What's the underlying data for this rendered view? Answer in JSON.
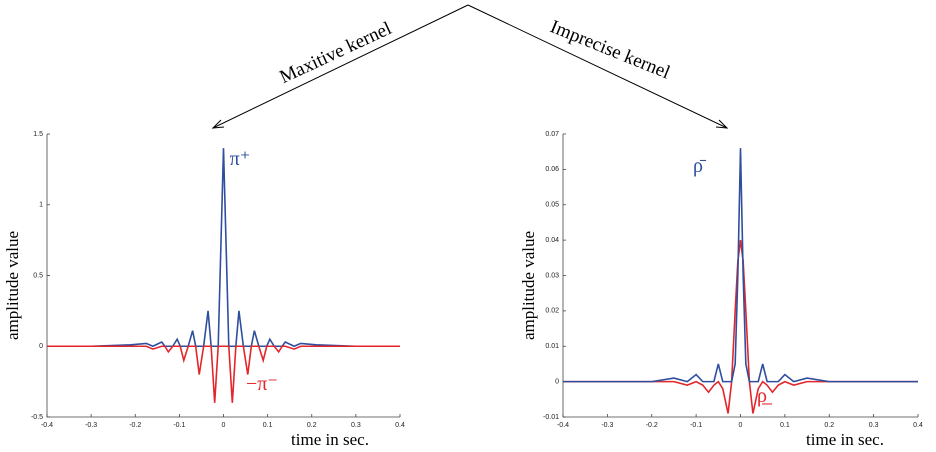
{
  "annotations": [
    "Maxitive kernel",
    "Imprecise kernel"
  ],
  "chart_data": [
    {
      "type": "line",
      "ylabel": "amplitude value",
      "xlabel": "time in sec.",
      "xlim": [
        -0.4,
        0.4
      ],
      "xticks": [
        -0.4,
        -0.3,
        -0.2,
        -0.1,
        0,
        0.1,
        0.2,
        0.3,
        0.4
      ],
      "ylim": [
        -0.5,
        1.5
      ],
      "yticks": [
        -0.5,
        0,
        0.5,
        1,
        1.5
      ],
      "x": [
        -0.4,
        -0.3,
        -0.21,
        -0.175,
        -0.16,
        -0.14,
        -0.133,
        -0.125,
        -0.115,
        -0.105,
        -0.098,
        -0.09,
        -0.08,
        -0.07,
        -0.063,
        -0.055,
        -0.045,
        -0.035,
        -0.028,
        -0.02,
        -0.012,
        0,
        0.012,
        0.02,
        0.028,
        0.035,
        0.045,
        0.055,
        0.063,
        0.07,
        0.08,
        0.09,
        0.098,
        0.105,
        0.115,
        0.125,
        0.133,
        0.14,
        0.16,
        0.175,
        0.21,
        0.3,
        0.4
      ],
      "series": [
        {
          "name": "π⁺",
          "color": "#2f4f9e",
          "values": [
            0,
            0,
            0.01,
            0.02,
            0,
            0.03,
            0,
            0,
            0,
            0.05,
            0,
            0,
            0,
            0.11,
            0,
            0,
            0,
            0.25,
            0,
            0,
            0,
            1.4,
            0,
            0,
            0,
            0.25,
            0,
            0,
            0,
            0.11,
            0,
            0,
            0,
            0.05,
            0,
            0,
            0,
            0.03,
            0,
            0.02,
            0.01,
            0,
            0
          ]
        },
        {
          "name": "−π⁻",
          "color": "#e3262b",
          "values": [
            0,
            0,
            0,
            0,
            -0.02,
            0,
            0,
            -0.04,
            0,
            0,
            0,
            -0.1,
            0,
            0,
            0,
            -0.2,
            0,
            0,
            0,
            -0.4,
            0,
            0,
            0,
            -0.4,
            0,
            0,
            0,
            -0.2,
            0,
            0,
            0,
            -0.1,
            0,
            0,
            0,
            -0.04,
            0,
            0,
            -0.02,
            0,
            0,
            0,
            0
          ]
        }
      ]
    },
    {
      "type": "line",
      "ylabel": "amplitude value",
      "xlabel": "time in sec.",
      "xlim": [
        -0.4,
        0.4
      ],
      "xticks": [
        -0.4,
        -0.3,
        -0.2,
        -0.1,
        0,
        0.1,
        0.2,
        0.3,
        0.4
      ],
      "ylim": [
        -0.01,
        0.07
      ],
      "yticks": [
        -0.01,
        0,
        0.01,
        0.02,
        0.03,
        0.04,
        0.05,
        0.06,
        0.07
      ],
      "x": [
        -0.4,
        -0.3,
        -0.2,
        -0.15,
        -0.12,
        -0.1,
        -0.085,
        -0.072,
        -0.06,
        -0.05,
        -0.04,
        -0.028,
        -0.02,
        -0.012,
        -0.006,
        0,
        0.006,
        0.012,
        0.02,
        0.028,
        0.04,
        0.05,
        0.06,
        0.072,
        0.085,
        0.1,
        0.12,
        0.15,
        0.2,
        0.3,
        0.4
      ],
      "series": [
        {
          "name": "ρ̲",
          "color": "#e3262b",
          "values": [
            0,
            0,
            0,
            0,
            -0.001,
            0,
            -0.001,
            -0.003,
            -0.001,
            0,
            -0.002,
            -0.009,
            0,
            0.02,
            0.034,
            0.04,
            0.034,
            0.02,
            0,
            -0.009,
            -0.002,
            0,
            -0.001,
            -0.003,
            -0.001,
            0,
            -0.001,
            0,
            0,
            0,
            0
          ]
        },
        {
          "name": "ρ̄",
          "color": "#2f4f9e",
          "values": [
            0,
            0,
            0,
            0.001,
            0,
            0.002,
            0,
            0,
            0,
            0.005,
            0,
            0,
            0,
            0.005,
            0.03,
            0.066,
            0.03,
            0.005,
            0,
            0,
            0,
            0.005,
            0,
            0,
            0,
            0.002,
            0,
            0.001,
            0,
            0,
            0
          ]
        }
      ]
    }
  ]
}
